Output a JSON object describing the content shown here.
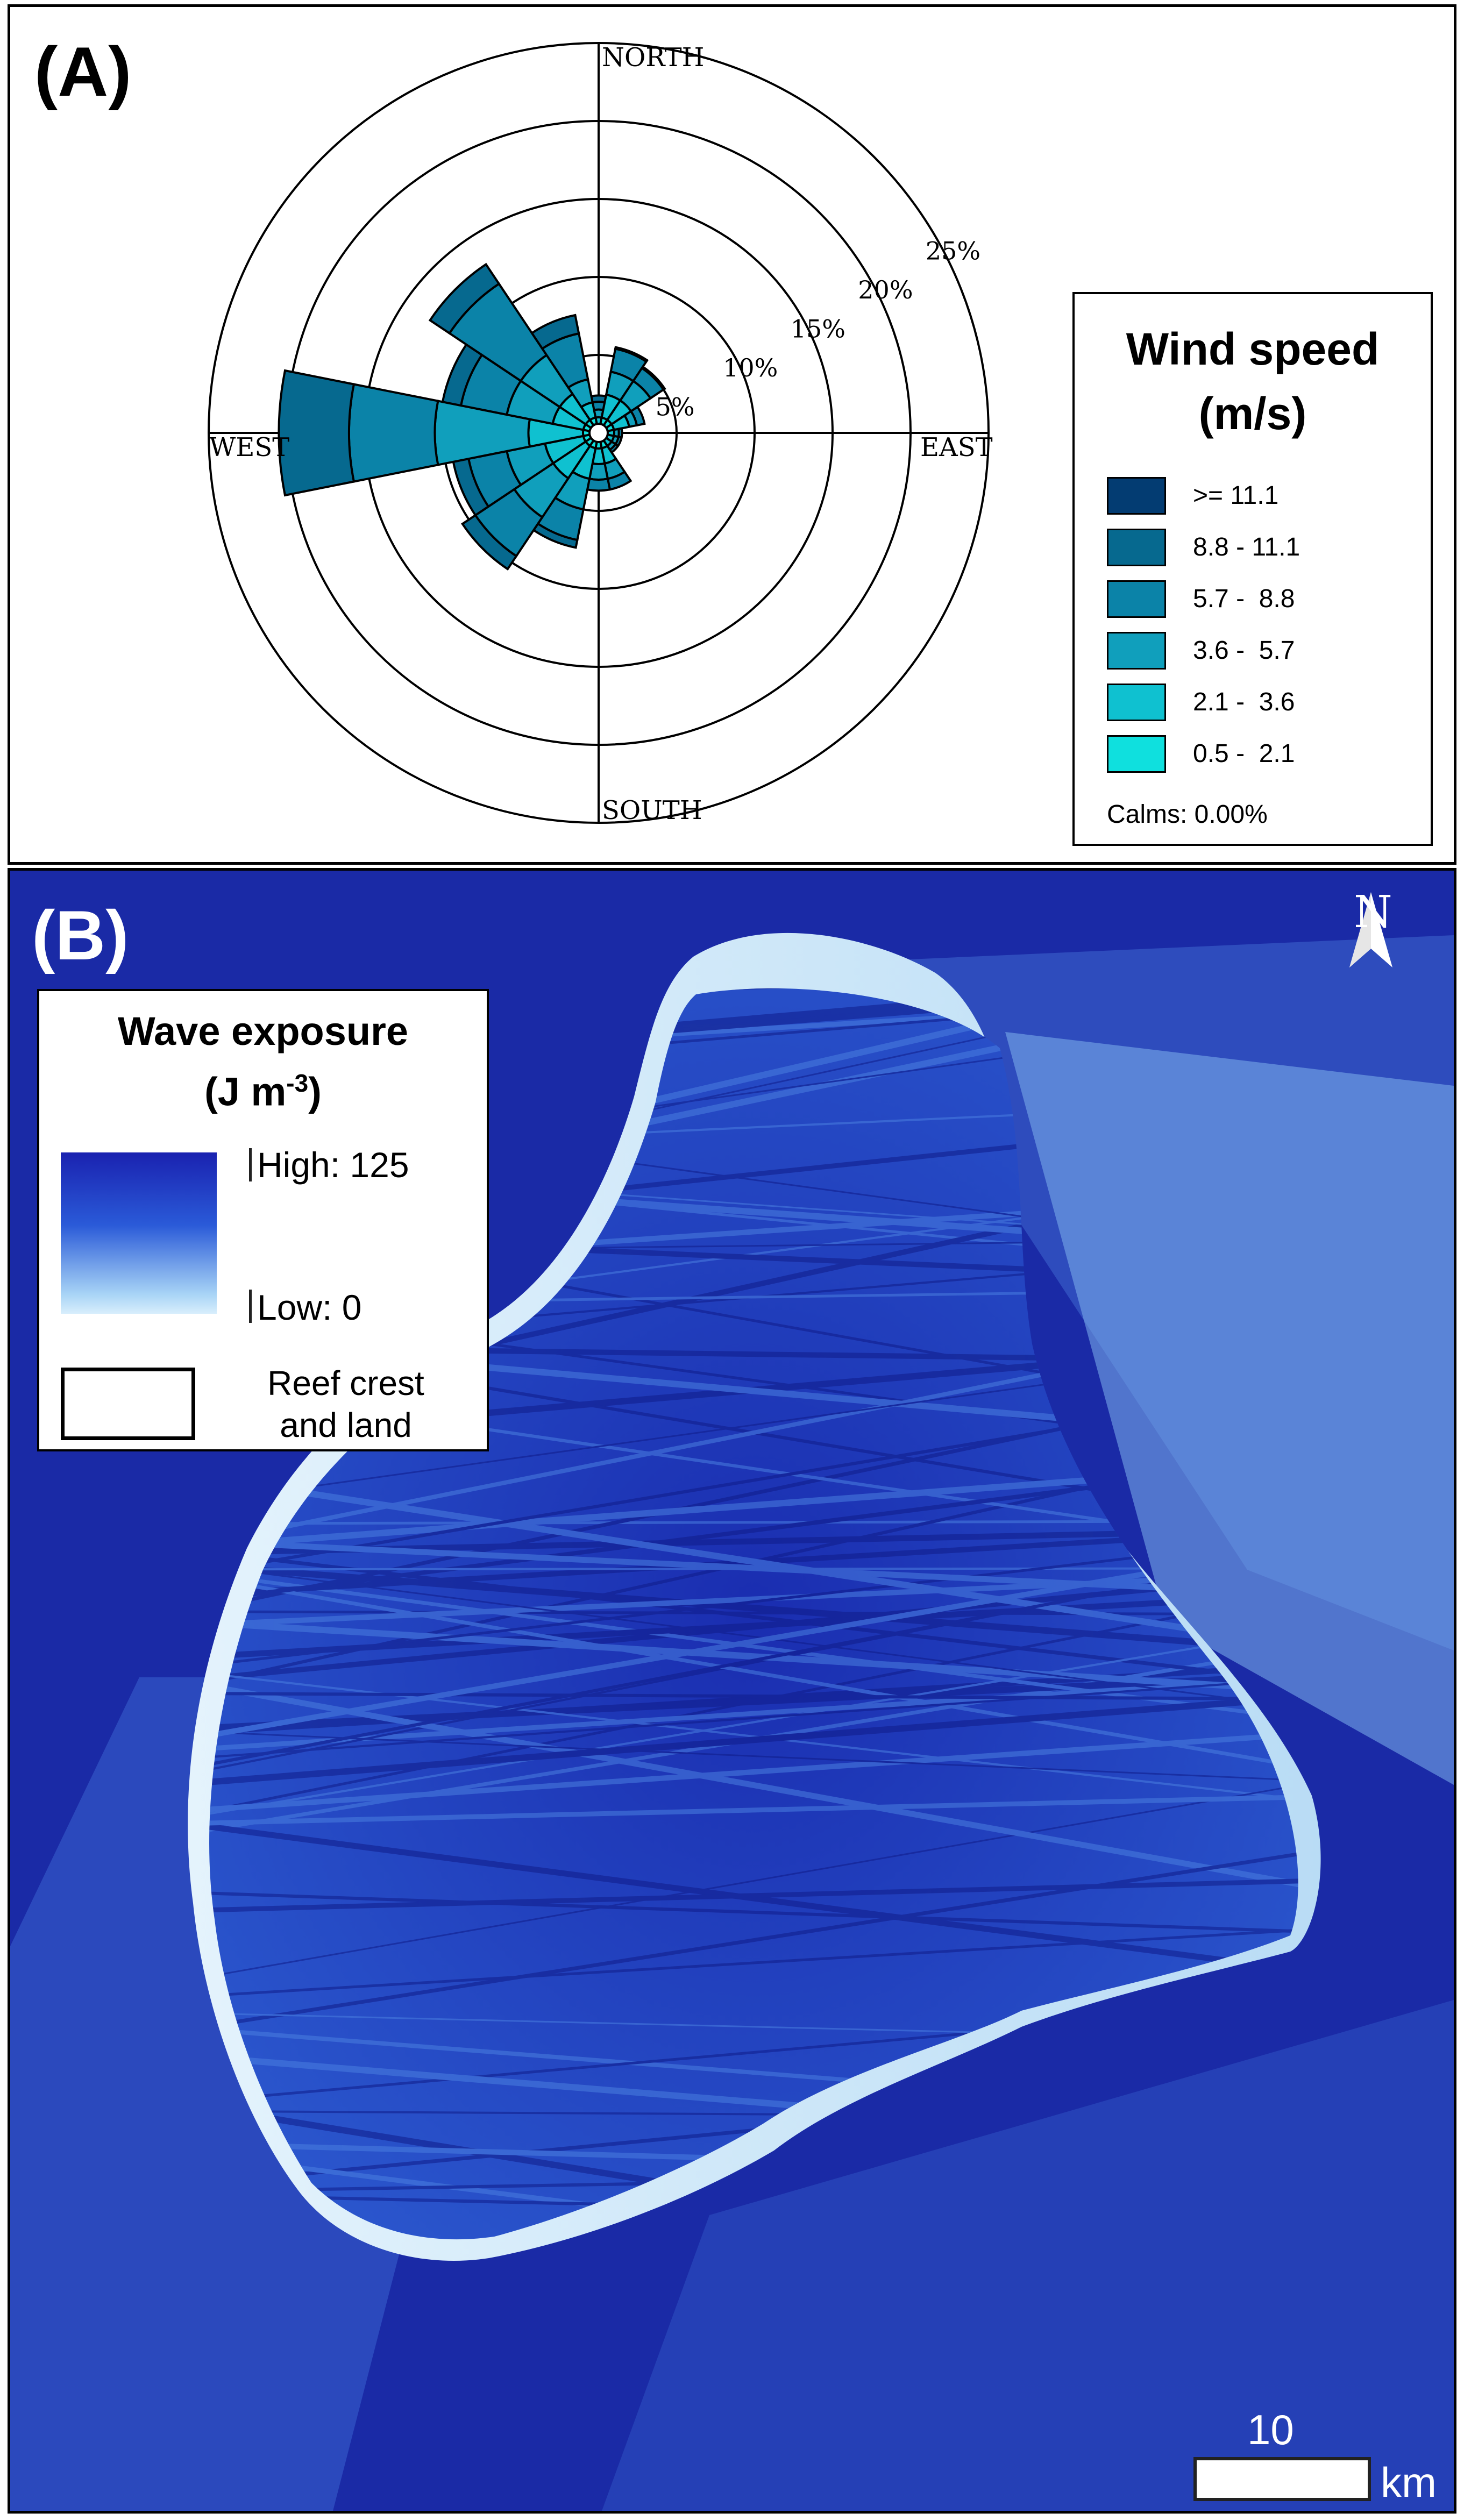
{
  "panelA": {
    "letter": "(A)",
    "rose": {
      "directions": {
        "north": "NORTH",
        "south": "SOUTH",
        "east": "EAST",
        "west": "WEST"
      },
      "ring_labels": [
        "5%",
        "10%",
        "15%",
        "20%",
        "25%"
      ],
      "ring_values": [
        5,
        10,
        15,
        20,
        25
      ],
      "sector_width_deg": 22.5,
      "class_colors": [
        "#0fe0de",
        "#0fc1d0",
        "#109fbc",
        "#0b83a8",
        "#06698f",
        "#033c72"
      ]
    },
    "legend": {
      "title_line1": "Wind speed",
      "title_line2": "(m/s)",
      "classes": [
        {
          "label": ">= 11.1",
          "color": "#033c72"
        },
        {
          "label": "8.8 - 11.1",
          "color": "#06698f"
        },
        {
          "label": "5.7 -  8.8",
          "color": "#0b83a8"
        },
        {
          "label": "3.6 -  5.7",
          "color": "#109fbc"
        },
        {
          "label": "2.1 -  3.6",
          "color": "#0fc1d0"
        },
        {
          "label": "0.5 -  2.1",
          "color": "#0fe0de"
        }
      ],
      "calms": "Calms: 0.00%"
    }
  },
  "chart_data": {
    "type": "windrose",
    "units": "% frequency",
    "class_order": [
      "0.5 -  2.1",
      "2.1 -  3.6",
      "3.6 -  5.7",
      "5.7 -  8.8",
      "8.8 - 11.1",
      ">= 11.1"
    ],
    "directions_deg": [
      0,
      22.5,
      45,
      67.5,
      90,
      112.5,
      135,
      157.5,
      180,
      202.5,
      225,
      247.5,
      270,
      292.5,
      315,
      337.5
    ],
    "cumulative": [
      [
        0.5,
        1.0,
        1.5,
        2.0,
        2.4,
        2.4
      ],
      [
        1.0,
        2.5,
        4.0,
        5.5,
        5.6,
        5.6
      ],
      [
        1.0,
        2.5,
        4.0,
        5.0,
        5.1,
        5.1
      ],
      [
        1.0,
        2.0,
        2.5,
        3.0,
        3.0,
        3.0
      ],
      [
        0.5,
        1.0,
        1.3,
        1.5,
        1.5,
        1.5
      ],
      [
        0.5,
        1.0,
        1.3,
        1.5,
        1.5,
        1.5
      ],
      [
        0.5,
        1.0,
        1.3,
        1.5,
        1.5,
        1.5
      ],
      [
        1.0,
        2.0,
        3.0,
        3.7,
        3.7,
        3.7
      ],
      [
        1.0,
        2.0,
        3.0,
        3.7,
        3.7,
        3.7
      ],
      [
        1.0,
        3.0,
        5.0,
        7.0,
        7.5,
        7.5
      ],
      [
        1.0,
        3.5,
        6.5,
        9.5,
        10.5,
        10.5
      ],
      [
        1.0,
        3.5,
        6.0,
        8.5,
        9.5,
        9.5
      ],
      [
        1.0,
        4.5,
        10.5,
        16.0,
        20.5,
        20.5
      ],
      [
        1.0,
        3.0,
        6.0,
        9.0,
        10.2,
        10.2
      ],
      [
        1.0,
        3.0,
        6.0,
        11.5,
        13.0,
        13.0
      ],
      [
        1.0,
        2.0,
        3.5,
        6.5,
        7.7,
        7.7
      ]
    ]
  },
  "panelB": {
    "letter": "(B)",
    "legend": {
      "title_line1": "Wave exposure",
      "title_line2": "(J m",
      "title_sup": "-3",
      "title_end": ")",
      "high": "High: 125",
      "low": "Low: 0",
      "reef_line1": "Reef crest",
      "reef_line2": "and land"
    },
    "north": "N",
    "scale_value": "10",
    "scale_unit": "km",
    "colors": {
      "deep": "#1626a6",
      "mid": "#2c5cd4",
      "shallow": "#c7e4f8"
    }
  }
}
